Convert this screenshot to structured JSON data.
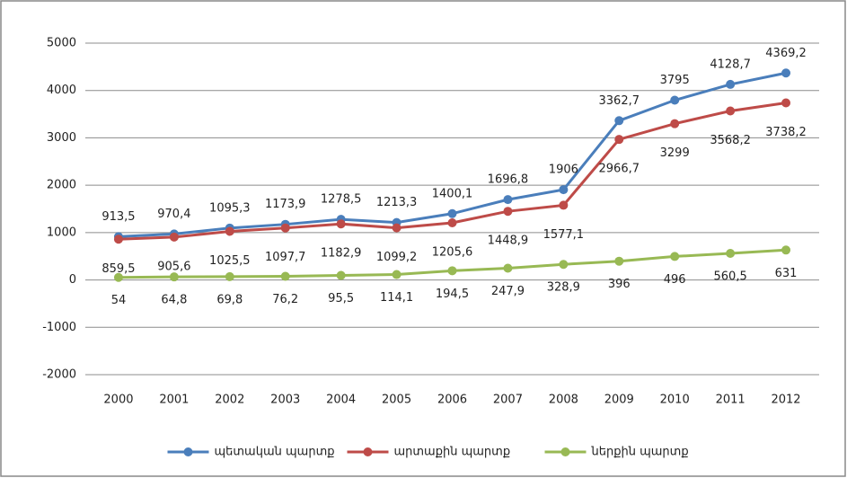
{
  "chart_data": {
    "type": "line",
    "categories": [
      "2000",
      "2001",
      "2002",
      "2003",
      "2004",
      "2005",
      "2006",
      "2007",
      "2008",
      "2009",
      "2010",
      "2011",
      "2012"
    ],
    "series": [
      {
        "name": "պետական պարտք",
        "color": "#4a7ebb",
        "values": [
          913.5,
          970.4,
          1095.3,
          1173.9,
          1278.5,
          1213.3,
          1400.1,
          1696.8,
          1906,
          3362.7,
          3795,
          4128.7,
          4369.2
        ],
        "value_labels": [
          "913,5",
          "970,4",
          "1095,3",
          "1173,9",
          "1278,5",
          "1213,3",
          "1400,1",
          "1696,8",
          "1906",
          "3362,7",
          "3795",
          "4128,7",
          "4369,2"
        ]
      },
      {
        "name": "արտաքին պարտք",
        "color": "#be4b48",
        "values": [
          859.5,
          905.6,
          1025.5,
          1097.7,
          1182.9,
          1099.2,
          1205.6,
          1448.9,
          1577.1,
          2966.7,
          3299,
          3568.2,
          3738.2
        ],
        "value_labels": [
          "859,5",
          "905,6",
          "1025,5",
          "1097,7",
          "1182,9",
          "1099,2",
          "1205,6",
          "1448,9",
          "1577,1",
          "2966,7",
          "3299",
          "3568,2",
          "3738,2"
        ]
      },
      {
        "name": "ներքին պարտք",
        "color": "#98b954",
        "values": [
          54,
          64.8,
          69.8,
          76.2,
          95.5,
          114.1,
          194.5,
          247.9,
          328.9,
          396,
          496,
          560.5,
          631
        ],
        "value_labels": [
          "54",
          "64,8",
          "69,8",
          "76,2",
          "95,5",
          "114,1",
          "194,5",
          "247,9",
          "328,9",
          "396",
          "496",
          "560,5",
          "631"
        ]
      }
    ],
    "ylim": [
      -2000,
      5000
    ],
    "yticks": [
      -2000,
      -1000,
      0,
      1000,
      2000,
      3000,
      4000,
      5000
    ],
    "grid": true,
    "legend": "bottom"
  }
}
